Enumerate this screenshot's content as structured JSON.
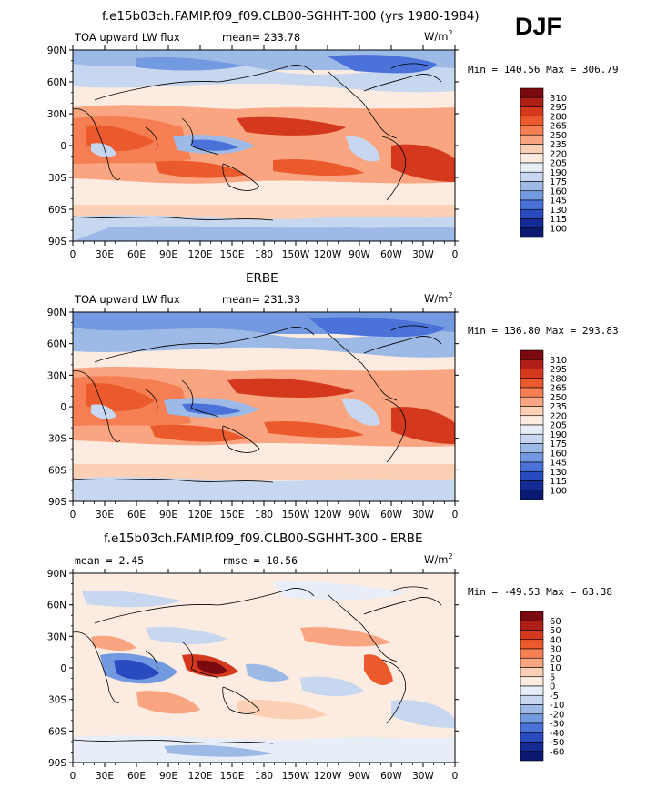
{
  "header": {
    "season": "DJF"
  },
  "panels": [
    {
      "id": "model",
      "title": "f.e15b03ch.FAMIP.f09_f09.CLB00-SGHHT-300 (yrs 1980-1984)",
      "field_label": "TOA upward LW flux",
      "stat_text": "mean= 233.78",
      "units": "W/m",
      "units_exp": "2",
      "minmax_text": "Min = 140.56 Max = 306.79",
      "colorbar": [
        "310",
        "295",
        "280",
        "265",
        "250",
        "235",
        "220",
        "205",
        "190",
        "175",
        "160",
        "145",
        "130",
        "115",
        "100"
      ]
    },
    {
      "id": "obs",
      "title": "ERBE",
      "field_label": "TOA upward LW flux",
      "stat_text": "mean= 231.33",
      "units": "W/m",
      "units_exp": "2",
      "minmax_text": "Min = 136.80 Max = 293.83",
      "colorbar": [
        "310",
        "295",
        "280",
        "265",
        "250",
        "235",
        "220",
        "205",
        "190",
        "175",
        "160",
        "145",
        "130",
        "115",
        "100"
      ]
    },
    {
      "id": "diff",
      "title": "f.e15b03ch.FAMIP.f09_f09.CLB00-SGHHT-300 - ERBE",
      "stat_text": "mean =   2.45",
      "stat2_text": "rmse =  10.56",
      "units": "W/m",
      "units_exp": "2",
      "minmax_text": "Min = -49.53 Max =  63.38",
      "colorbar": [
        "60",
        "50",
        "40",
        "30",
        "20",
        "10",
        "5",
        "0",
        "-5",
        "-10",
        "-20",
        "-30",
        "-40",
        "-50",
        "-60"
      ]
    }
  ],
  "axes": {
    "lat_ticks": [
      "90N",
      "60N",
      "30N",
      "0",
      "30S",
      "60S",
      "90S"
    ],
    "lon_ticks": [
      "0",
      "30E",
      "60E",
      "90E",
      "120E",
      "150E",
      "180",
      "150W",
      "120W",
      "90W",
      "60W",
      "30W",
      "0"
    ]
  },
  "colors": {
    "abs_scale": [
      "#7a0a10",
      "#b01e18",
      "#d4391d",
      "#ea5a2c",
      "#f57f52",
      "#f9a581",
      "#fbd0b5",
      "#fbebe0",
      "#e8eef8",
      "#c6d7ef",
      "#9db9e6",
      "#7399e0",
      "#4a72d8",
      "#2a4bc0",
      "#142a95",
      "#0b1a70"
    ],
    "diff_scale": [
      "#7a0a10",
      "#b01e18",
      "#d4391d",
      "#ea5a2c",
      "#f57f52",
      "#f9a581",
      "#fbd0b5",
      "#fbebe0",
      "#e8eef8",
      "#c6d7ef",
      "#9db9e6",
      "#7399e0",
      "#4a72d8",
      "#2a4bc0",
      "#142a95",
      "#0b1a70"
    ]
  }
}
